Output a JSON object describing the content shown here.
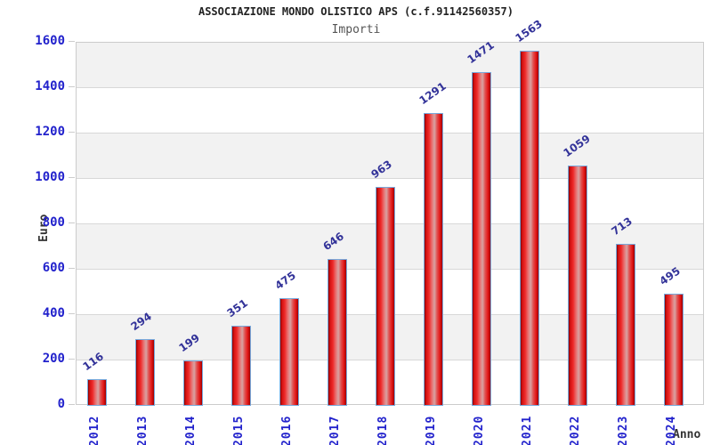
{
  "chart_data": {
    "type": "bar",
    "title": "ASSOCIAZIONE MONDO OLISTICO APS (c.f.91142560357)",
    "subtitle": "Importi",
    "xlabel": "Anno",
    "ylabel": "Euro",
    "categories": [
      "2012",
      "2013",
      "2014",
      "2015",
      "2016",
      "2017",
      "2018",
      "2019",
      "2020",
      "2021",
      "2022",
      "2023",
      "2024"
    ],
    "values": [
      116,
      294,
      199,
      351,
      475,
      646,
      963,
      1291,
      1471,
      1563,
      1059,
      713,
      495
    ],
    "ylim": [
      0,
      1600
    ],
    "ytick_step": 200,
    "grid": "horizontal, alternating gray/white bands",
    "legend": "none",
    "colors": {
      "bar_fill_main": "#e41818",
      "bar_fill_edge": "#7e0000",
      "bar_fill_center_highlight": "#d8a2a2",
      "bar_border": "#77aadd",
      "axis_tick_label": "#2222cc",
      "value_label": "#333399",
      "band_gray": "#f2f2f2",
      "grid_line": "#d8d8d8",
      "plot_border": "#cccccc",
      "title_color": "#222222",
      "subtitle_color": "#555555",
      "axis_title_color": "#333333"
    }
  }
}
